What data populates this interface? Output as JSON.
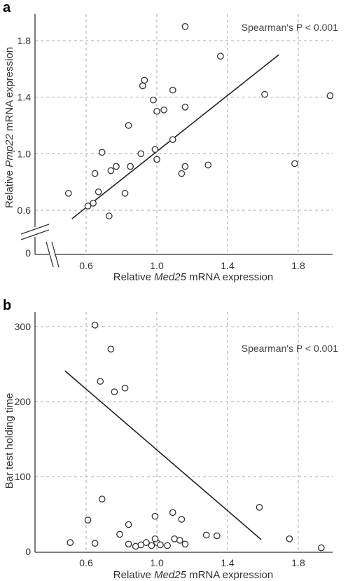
{
  "chart_data": [
    {
      "type": "scatter",
      "panel_letter": "a",
      "annotation": "Spearman's P < 0.001",
      "xlabel": {
        "prefix": "Relative ",
        "italic": "Med25",
        "suffix": " mRNA expression"
      },
      "ylabel": {
        "prefix": "Relative ",
        "italic": "Pmp22",
        "suffix": " mRNA expression"
      },
      "xlim": [
        0.4,
        2.05
      ],
      "ylim": [
        0.4,
        2.0
      ],
      "y_axis_break": true,
      "y_break_label": "0",
      "x_ticks": [
        0.6,
        1.0,
        1.4,
        1.8
      ],
      "x_tick_labels": [
        "0.6",
        "1.0",
        "1.4",
        "1.8"
      ],
      "y_ticks": [
        0.6,
        1.0,
        1.4,
        1.8
      ],
      "y_tick_labels": [
        "0.6",
        "1.0",
        "1.4",
        "1.8"
      ],
      "grid": true,
      "points": [
        [
          1.16,
          1.9
        ],
        [
          1.36,
          1.69
        ],
        [
          1.98,
          1.41
        ],
        [
          1.61,
          1.42
        ],
        [
          0.93,
          1.52
        ],
        [
          0.92,
          1.48
        ],
        [
          1.09,
          1.45
        ],
        [
          0.98,
          1.38
        ],
        [
          1.16,
          1.33
        ],
        [
          1.04,
          1.31
        ],
        [
          1.0,
          1.3
        ],
        [
          0.84,
          1.2
        ],
        [
          1.09,
          1.1
        ],
        [
          0.69,
          1.01
        ],
        [
          0.91,
          1.0
        ],
        [
          0.99,
          1.03
        ],
        [
          1.0,
          0.96
        ],
        [
          0.85,
          0.91
        ],
        [
          0.77,
          0.91
        ],
        [
          0.74,
          0.88
        ],
        [
          1.16,
          0.91
        ],
        [
          1.29,
          0.92
        ],
        [
          1.78,
          0.93
        ],
        [
          0.65,
          0.86
        ],
        [
          1.14,
          0.86
        ],
        [
          0.67,
          0.73
        ],
        [
          0.82,
          0.72
        ],
        [
          0.5,
          0.72
        ],
        [
          0.64,
          0.65
        ],
        [
          0.61,
          0.63
        ],
        [
          0.73,
          0.56
        ]
      ],
      "fit_line": [
        [
          0.52,
          0.54
        ],
        [
          1.69,
          1.7
        ]
      ]
    },
    {
      "type": "scatter",
      "panel_letter": "b",
      "annotation": "Spearman's P < 0.001",
      "xlabel": {
        "prefix": "Relative ",
        "italic": "Med25",
        "suffix": " mRNA expression"
      },
      "ylabel": {
        "prefix": "Bar test holding time",
        "italic": "",
        "suffix": ""
      },
      "xlim": [
        0.4,
        2.05
      ],
      "ylim": [
        0,
        330
      ],
      "x_ticks": [
        0.6,
        1.0,
        1.4,
        1.8
      ],
      "x_tick_labels": [
        "0.6",
        "1.0",
        "1.4",
        "1.8"
      ],
      "y_ticks": [
        0,
        100,
        200,
        300
      ],
      "y_tick_labels": [
        "0",
        "100",
        "200",
        "300"
      ],
      "grid": true,
      "points": [
        [
          0.65,
          302
        ],
        [
          0.74,
          270
        ],
        [
          0.68,
          227
        ],
        [
          0.82,
          218
        ],
        [
          0.76,
          213
        ],
        [
          0.69,
          70
        ],
        [
          0.61,
          42
        ],
        [
          0.84,
          36
        ],
        [
          0.99,
          47
        ],
        [
          1.09,
          52
        ],
        [
          1.14,
          43
        ],
        [
          1.58,
          59
        ],
        [
          0.79,
          23
        ],
        [
          0.51,
          12
        ],
        [
          0.65,
          11
        ],
        [
          0.84,
          10
        ],
        [
          0.88,
          7
        ],
        [
          0.91,
          9
        ],
        [
          0.94,
          12
        ],
        [
          0.97,
          8
        ],
        [
          1.0,
          12
        ],
        [
          0.99,
          17
        ],
        [
          1.02,
          9
        ],
        [
          1.06,
          8
        ],
        [
          1.1,
          17
        ],
        [
          1.13,
          15
        ],
        [
          1.16,
          10
        ],
        [
          1.28,
          22
        ],
        [
          1.34,
          21
        ],
        [
          1.75,
          17
        ],
        [
          1.93,
          5
        ]
      ],
      "fit_line": [
        [
          0.48,
          241
        ],
        [
          1.59,
          16
        ]
      ]
    }
  ]
}
